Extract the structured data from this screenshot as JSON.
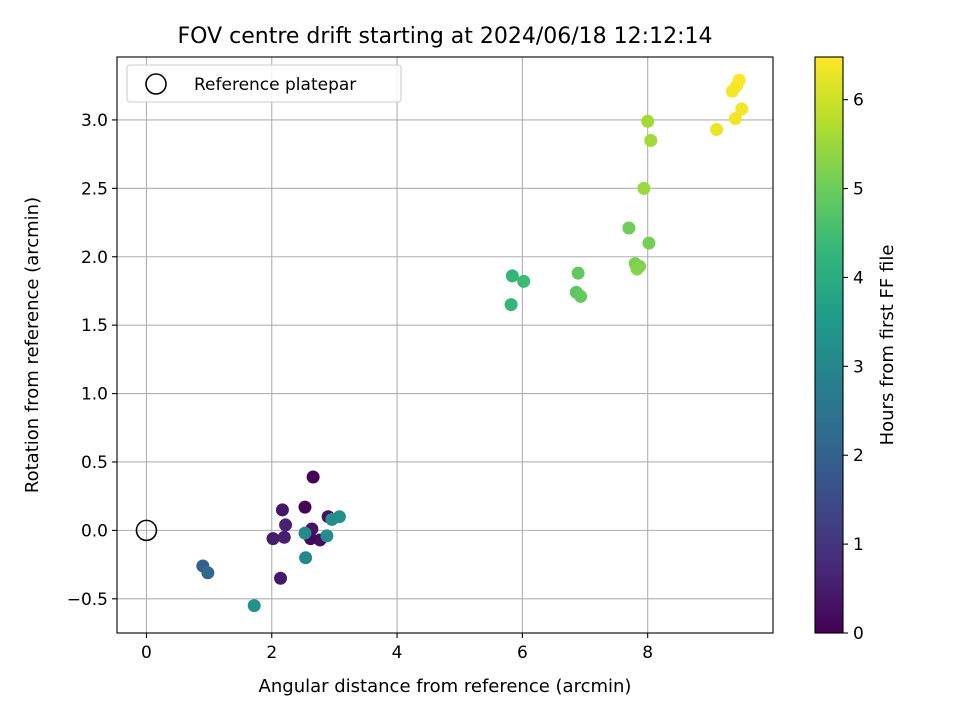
{
  "chart_data": {
    "type": "scatter",
    "title": "FOV centre drift starting at 2024/06/18 12:12:14",
    "xlabel": "Angular distance from reference (arcmin)",
    "ylabel": "Rotation from reference (arcmin)",
    "xlim": [
      -0.47,
      10.0
    ],
    "ylim": [
      -0.75,
      3.46
    ],
    "xticks": [
      0,
      2,
      4,
      6,
      8
    ],
    "yticks": [
      -0.5,
      0.0,
      0.5,
      1.0,
      1.5,
      2.0,
      2.5,
      3.0
    ],
    "ytick_labels": [
      "−0.5",
      "0.0",
      "0.5",
      "1.0",
      "1.5",
      "2.0",
      "2.5",
      "3.0"
    ],
    "grid": true,
    "legend": {
      "position": "upper left",
      "entries": [
        "Reference platepar"
      ]
    },
    "reference_point": {
      "x": 0,
      "y": 0
    },
    "colorbar": {
      "label": "Hours from first FF file",
      "range": [
        0,
        6.48
      ],
      "ticks": [
        0,
        1,
        2,
        3,
        4,
        5,
        6
      ],
      "colormap": "viridis"
    },
    "points": [
      {
        "x": 2.66,
        "y": 0.39,
        "h": 0.05
      },
      {
        "x": 2.53,
        "y": 0.17,
        "h": 0.1
      },
      {
        "x": 2.62,
        "y": -0.06,
        "h": 0.15
      },
      {
        "x": 2.77,
        "y": -0.07,
        "h": 0.2
      },
      {
        "x": 2.9,
        "y": 0.1,
        "h": 0.25
      },
      {
        "x": 2.64,
        "y": 0.01,
        "h": 0.3
      },
      {
        "x": 2.17,
        "y": 0.15,
        "h": 0.4
      },
      {
        "x": 2.14,
        "y": -0.35,
        "h": 0.45
      },
      {
        "x": 2.02,
        "y": -0.06,
        "h": 0.5
      },
      {
        "x": 2.2,
        "y": -0.05,
        "h": 0.55
      },
      {
        "x": 2.22,
        "y": 0.04,
        "h": 0.6
      },
      {
        "x": 0.9,
        "y": -0.26,
        "h": 1.95
      },
      {
        "x": 0.98,
        "y": -0.31,
        "h": 2.2
      },
      {
        "x": 2.54,
        "y": -0.2,
        "h": 3.05
      },
      {
        "x": 2.53,
        "y": -0.02,
        "h": 3.1
      },
      {
        "x": 2.88,
        "y": -0.04,
        "h": 3.15
      },
      {
        "x": 2.96,
        "y": 0.08,
        "h": 3.2
      },
      {
        "x": 3.08,
        "y": 0.1,
        "h": 3.25
      },
      {
        "x": 1.72,
        "y": -0.55,
        "h": 3.3
      },
      {
        "x": 5.82,
        "y": 1.65,
        "h": 4.25
      },
      {
        "x": 5.84,
        "y": 1.86,
        "h": 4.3
      },
      {
        "x": 6.02,
        "y": 1.82,
        "h": 4.4
      },
      {
        "x": 6.86,
        "y": 1.74,
        "h": 4.8
      },
      {
        "x": 6.89,
        "y": 1.88,
        "h": 4.85
      },
      {
        "x": 6.93,
        "y": 1.71,
        "h": 4.9
      },
      {
        "x": 7.7,
        "y": 2.21,
        "h": 5.05
      },
      {
        "x": 8.02,
        "y": 2.1,
        "h": 5.1
      },
      {
        "x": 7.8,
        "y": 1.95,
        "h": 5.15
      },
      {
        "x": 7.87,
        "y": 1.93,
        "h": 5.2
      },
      {
        "x": 7.83,
        "y": 1.91,
        "h": 5.25
      },
      {
        "x": 7.94,
        "y": 2.5,
        "h": 5.5
      },
      {
        "x": 8.05,
        "y": 2.85,
        "h": 5.55
      },
      {
        "x": 8.0,
        "y": 2.99,
        "h": 5.6
      },
      {
        "x": 9.1,
        "y": 2.93,
        "h": 6.3
      },
      {
        "x": 9.4,
        "y": 3.01,
        "h": 6.35
      },
      {
        "x": 9.5,
        "y": 3.08,
        "h": 6.38
      },
      {
        "x": 9.35,
        "y": 3.21,
        "h": 6.4
      },
      {
        "x": 9.42,
        "y": 3.25,
        "h": 6.42
      },
      {
        "x": 9.46,
        "y": 3.29,
        "h": 6.45
      }
    ]
  }
}
